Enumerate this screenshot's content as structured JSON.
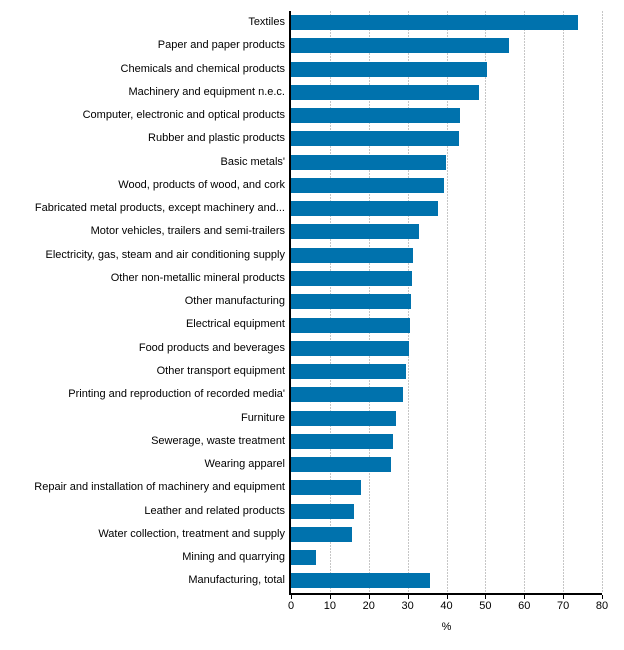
{
  "chart_data": {
    "type": "bar",
    "orientation": "horizontal",
    "title": "",
    "xlabel": "%",
    "ylabel": "",
    "xlim": [
      0,
      80
    ],
    "xticks": [
      0,
      10,
      20,
      30,
      40,
      50,
      60,
      70,
      80
    ],
    "grid": true,
    "bar_color": "#0072ad",
    "gridline_color": "#c6c6c6",
    "axis_color": "#000000",
    "categories": [
      "Textiles",
      "Paper and paper products",
      "Chemicals and chemical products",
      "Machinery and equipment n.e.c.",
      "Computer, electronic and optical products",
      "Rubber and plastic products",
      "Basic metals'",
      "Wood, products of wood, and cork",
      "Fabricated metal products, except machinery and...",
      "Motor vehicles, trailers and semi-trailers",
      "Electricity, gas, steam and air conditioning supply",
      "Other non-metallic mineral products",
      "Other manufacturing",
      "Electrical equipment",
      "Food products and beverages",
      "Other transport equipment",
      "Printing and reproduction of recorded media'",
      "Furniture",
      "Sewerage, waste treatment",
      "Wearing apparel",
      "Repair and installation of machinery and equipment",
      "Leather and related products",
      "Water collection, treatment and supply",
      "Mining and quarrying",
      "Manufacturing, total"
    ],
    "values": [
      73.8,
      56.2,
      50.5,
      48.3,
      43.6,
      43.3,
      39.8,
      39.4,
      37.7,
      32.9,
      31.3,
      31.0,
      30.8,
      30.5,
      30.3,
      29.5,
      28.7,
      27.0,
      26.3,
      25.7,
      18.0,
      16.2,
      15.6,
      6.5,
      35.7
    ]
  }
}
